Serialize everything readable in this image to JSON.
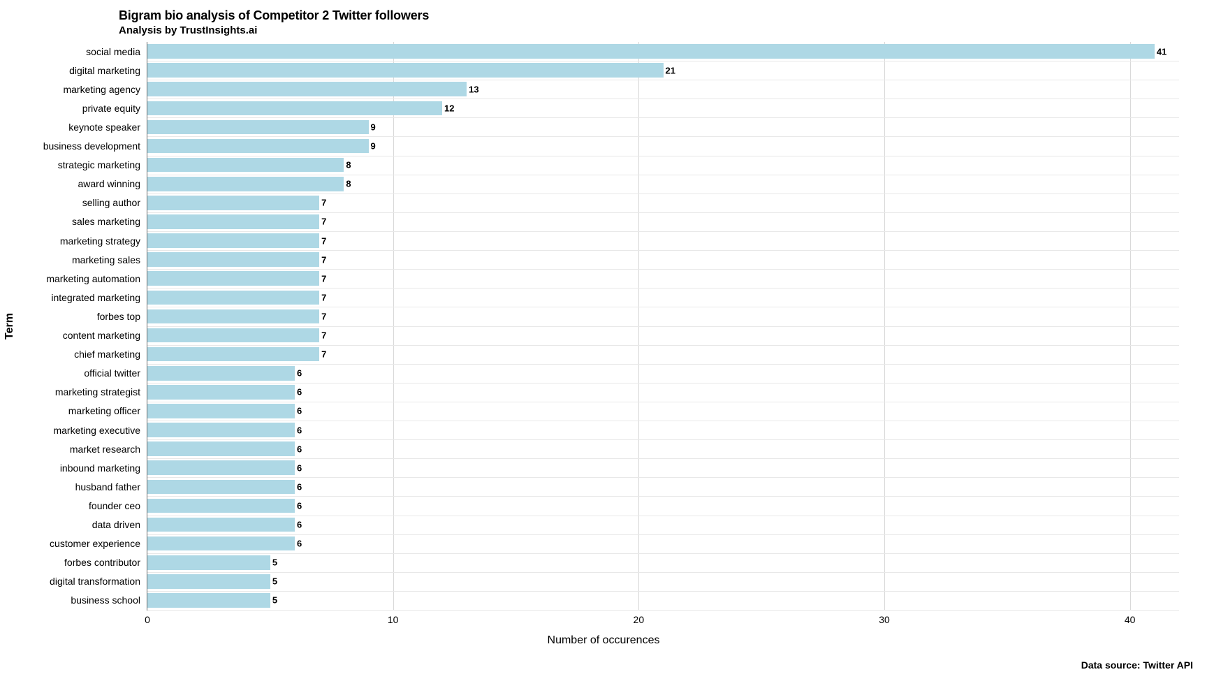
{
  "chart": {
    "type": "bar-horizontal",
    "title": "Bigram bio analysis of Competitor 2 Twitter followers",
    "title_fontsize": 18,
    "subtitle": "Analysis by TrustInsights.ai",
    "subtitle_fontsize": 15,
    "x_axis_label": "Number of occurences",
    "y_axis_label": "Term",
    "caption": "Data source: Twitter API",
    "x_axis": {
      "min": 0,
      "max": 42,
      "ticks": [
        0,
        10,
        20,
        30,
        40
      ]
    },
    "bar_color": "#aed8e5",
    "value_label_color": "#000000",
    "value_label_fontsize": 13,
    "y_tick_fontsize": 14,
    "x_tick_fontsize": 14,
    "grid_color_major": "#d9d9d9",
    "grid_color_minor": "#e8e8e8",
    "background_color": "#ffffff",
    "data": [
      {
        "term": "social media",
        "value": 41
      },
      {
        "term": "digital marketing",
        "value": 21
      },
      {
        "term": "marketing agency",
        "value": 13
      },
      {
        "term": "private equity",
        "value": 12
      },
      {
        "term": "keynote speaker",
        "value": 9
      },
      {
        "term": "business development",
        "value": 9
      },
      {
        "term": "strategic marketing",
        "value": 8
      },
      {
        "term": "award winning",
        "value": 8
      },
      {
        "term": "selling author",
        "value": 7
      },
      {
        "term": "sales marketing",
        "value": 7
      },
      {
        "term": "marketing strategy",
        "value": 7
      },
      {
        "term": "marketing sales",
        "value": 7
      },
      {
        "term": "marketing automation",
        "value": 7
      },
      {
        "term": "integrated marketing",
        "value": 7
      },
      {
        "term": "forbes top",
        "value": 7
      },
      {
        "term": "content marketing",
        "value": 7
      },
      {
        "term": "chief marketing",
        "value": 7
      },
      {
        "term": "official twitter",
        "value": 6
      },
      {
        "term": "marketing strategist",
        "value": 6
      },
      {
        "term": "marketing officer",
        "value": 6
      },
      {
        "term": "marketing executive",
        "value": 6
      },
      {
        "term": "market research",
        "value": 6
      },
      {
        "term": "inbound marketing",
        "value": 6
      },
      {
        "term": "husband father",
        "value": 6
      },
      {
        "term": "founder ceo",
        "value": 6
      },
      {
        "term": "data driven",
        "value": 6
      },
      {
        "term": "customer experience",
        "value": 6
      },
      {
        "term": "forbes contributor",
        "value": 5
      },
      {
        "term": "digital transformation",
        "value": 5
      },
      {
        "term": "business school",
        "value": 5
      }
    ]
  }
}
